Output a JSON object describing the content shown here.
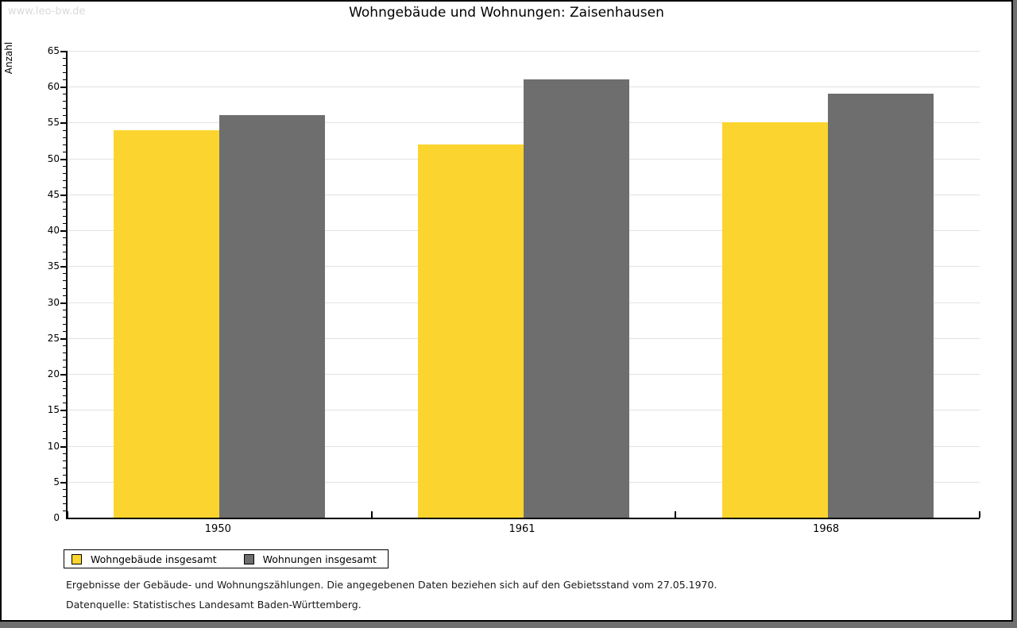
{
  "watermark": "www.leo-bw.de",
  "title": "Wohngebäude und Wohnungen: Zaisenhausen",
  "chart_data": {
    "type": "bar",
    "categories": [
      "1950",
      "1961",
      "1968"
    ],
    "series": [
      {
        "name": "Wohngebäude insgesamt",
        "color": "#FCD42F",
        "values": [
          54,
          52,
          55
        ]
      },
      {
        "name": "Wohnungen insgesamt",
        "color": "#6E6E6E",
        "values": [
          56,
          61,
          59
        ]
      }
    ],
    "title": "Wohngebäude und Wohnungen: Zaisenhausen",
    "xlabel": "",
    "ylabel": "Anzahl",
    "ylim": [
      0,
      65
    ],
    "ytick_step": 5,
    "yminor_step": 1,
    "grid": true,
    "legend_position": "bottom-left"
  },
  "footer": {
    "line1": "Ergebnisse der Gebäude- und Wohnungszählungen. Die angegebenen Daten beziehen sich auf den Gebietsstand vom 27.05.1970.",
    "line2": "Datenquelle: Statistisches Landesamt Baden-Württemberg."
  },
  "colors": {
    "series1": "#FCD42F",
    "series2": "#6E6E6E",
    "gridline": "#E2E2E2",
    "axis": "#000000",
    "frame_shadow": "#6F6F6F",
    "watermark_text": "#DADADA",
    "background": "#FFFFFF"
  }
}
